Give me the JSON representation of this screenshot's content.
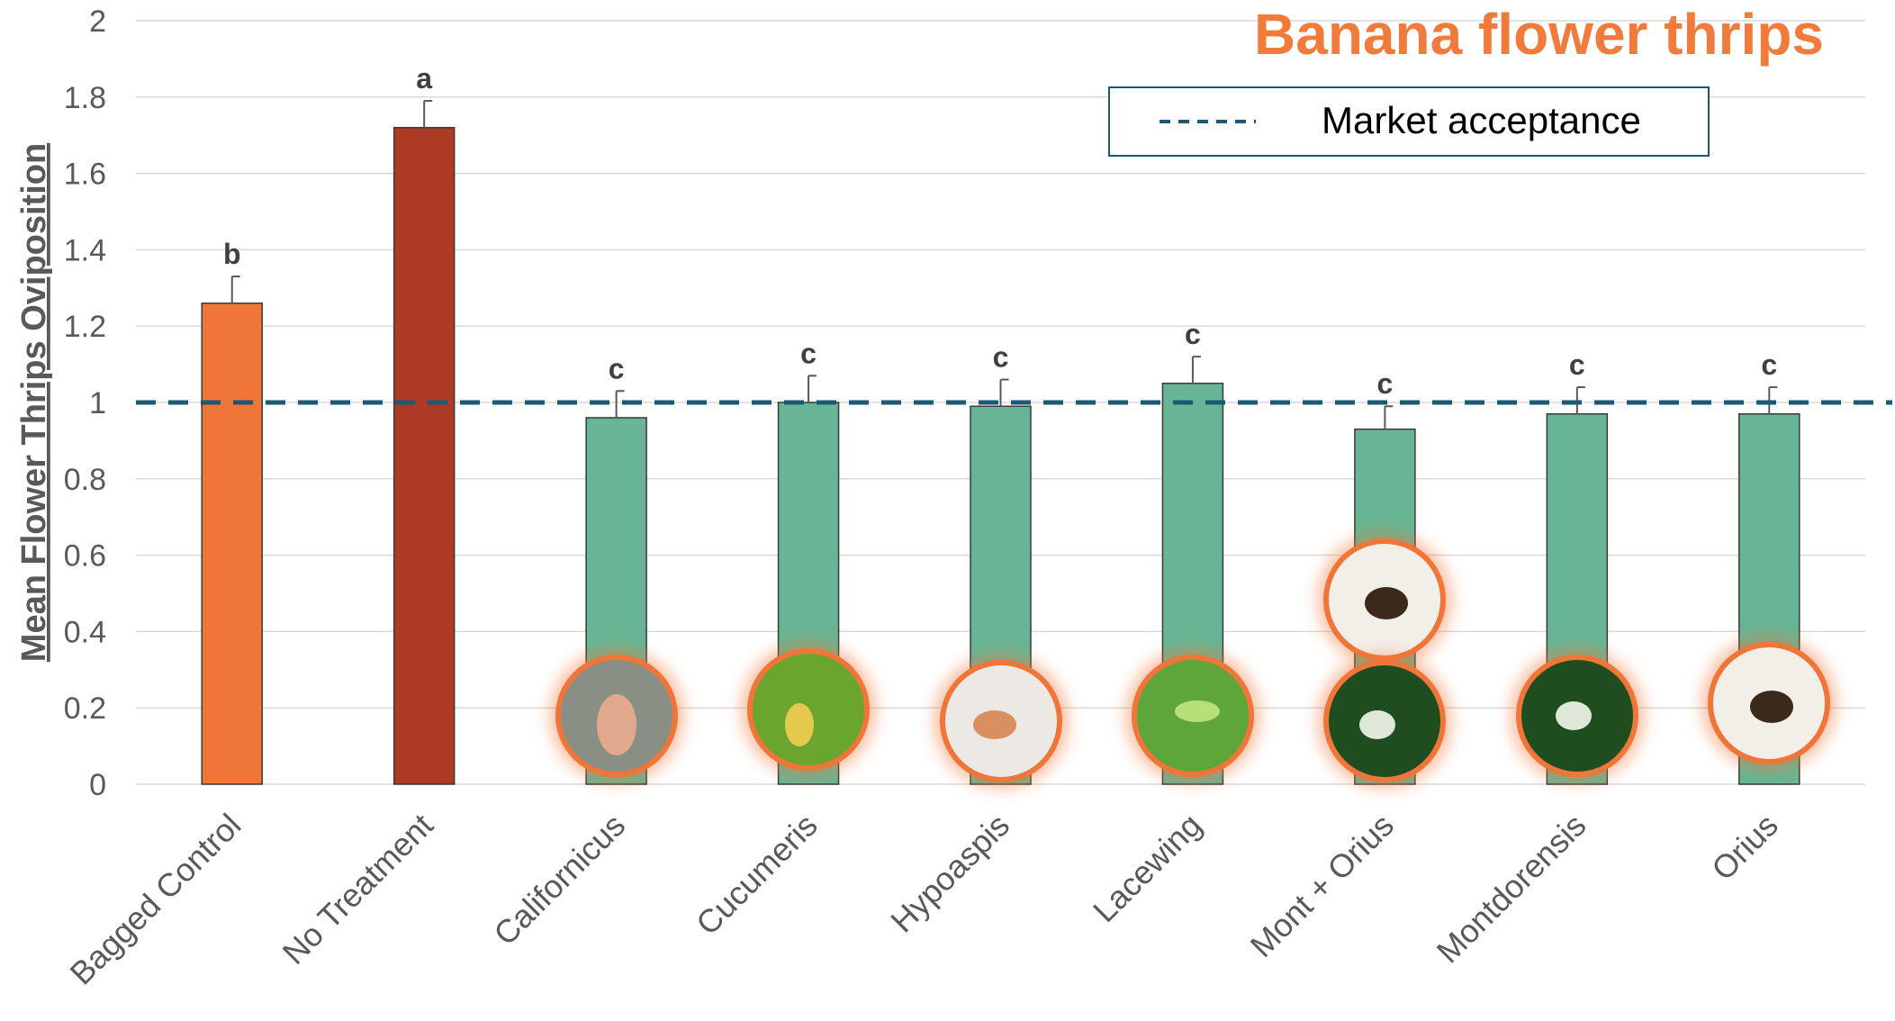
{
  "chart_data": {
    "type": "bar",
    "title": "Banana flower thrips",
    "y_label": "Mean Flower Thrips Oviposition",
    "categories": [
      "Bagged Control",
      "No Treatment",
      "Californicus",
      "Cucumeris",
      "Hypoaspis",
      "Lacewing",
      "Mont + Orius",
      "Montdorensis",
      "Orius"
    ],
    "values": [
      1.26,
      1.72,
      0.96,
      1.0,
      0.99,
      1.05,
      0.93,
      0.97,
      0.97
    ],
    "errors": [
      0.07,
      0.07,
      0.07,
      0.07,
      0.07,
      0.07,
      0.06,
      0.07,
      0.07
    ],
    "significance_letters": [
      "b",
      "a",
      "c",
      "c",
      "c",
      "c",
      "c",
      "c",
      "c"
    ],
    "colors": [
      "#f07538",
      "#ad3a24",
      "#67b594",
      "#67b594",
      "#67b594",
      "#67b594",
      "#67b594",
      "#67b594",
      "#67b594"
    ],
    "reference_line": {
      "name": "Market acceptance",
      "value": 1,
      "color": "#1b5a77"
    },
    "ylim": [
      0,
      2
    ],
    "yticks": [
      0,
      0.2,
      0.4,
      0.6,
      0.8,
      1,
      1.2,
      1.4,
      1.6,
      1.8,
      2
    ],
    "grid": true
  }
}
